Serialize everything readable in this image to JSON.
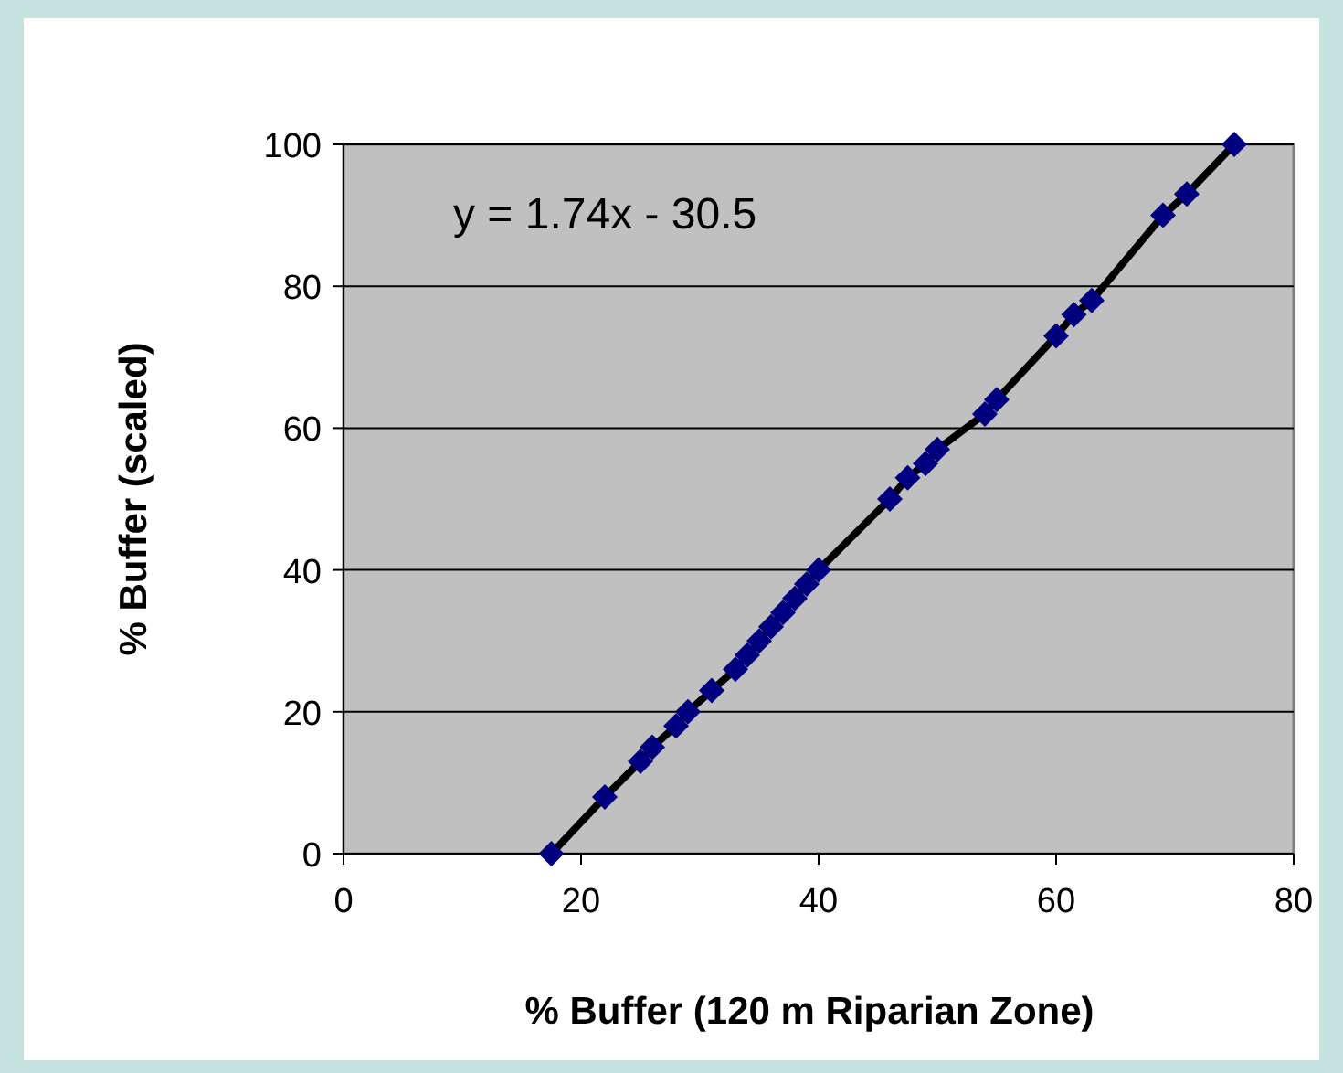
{
  "chart_data": {
    "type": "scatter",
    "xlabel": "% Buffer (120 m Riparian Zone)",
    "ylabel": "% Buffer (scaled)",
    "annotations": [
      "y = 1.74x - 30.5"
    ],
    "x": [
      17.5,
      22,
      25,
      26,
      28,
      29,
      31,
      33,
      34,
      35,
      36,
      37,
      38,
      39,
      40,
      46,
      47.5,
      49,
      50,
      54,
      55,
      60,
      61.5,
      63,
      69,
      71,
      75
    ],
    "series": [
      {
        "type": "line",
        "color": "#000000",
        "marker": "none",
        "values": [
          0,
          8,
          13,
          15,
          18,
          20,
          23,
          26,
          28,
          30,
          32,
          34,
          36,
          38,
          40,
          50,
          53,
          55,
          57,
          62,
          64,
          73,
          76,
          78,
          90,
          93,
          100
        ]
      },
      {
        "color": "#000080",
        "marker": "diamond",
        "values": [
          0,
          8,
          13,
          15,
          18,
          20,
          23,
          26,
          28,
          30,
          32,
          34,
          36,
          38,
          40,
          50,
          53,
          55,
          57,
          62,
          64,
          73,
          76,
          78,
          90,
          93,
          100
        ]
      }
    ],
    "xlim": [
      0,
      80
    ],
    "xticks": [
      0,
      20,
      40,
      60,
      80
    ],
    "ylim": [
      0,
      100
    ],
    "yticks": [
      0,
      20,
      40,
      60,
      80,
      100
    ],
    "grid": "y"
  }
}
